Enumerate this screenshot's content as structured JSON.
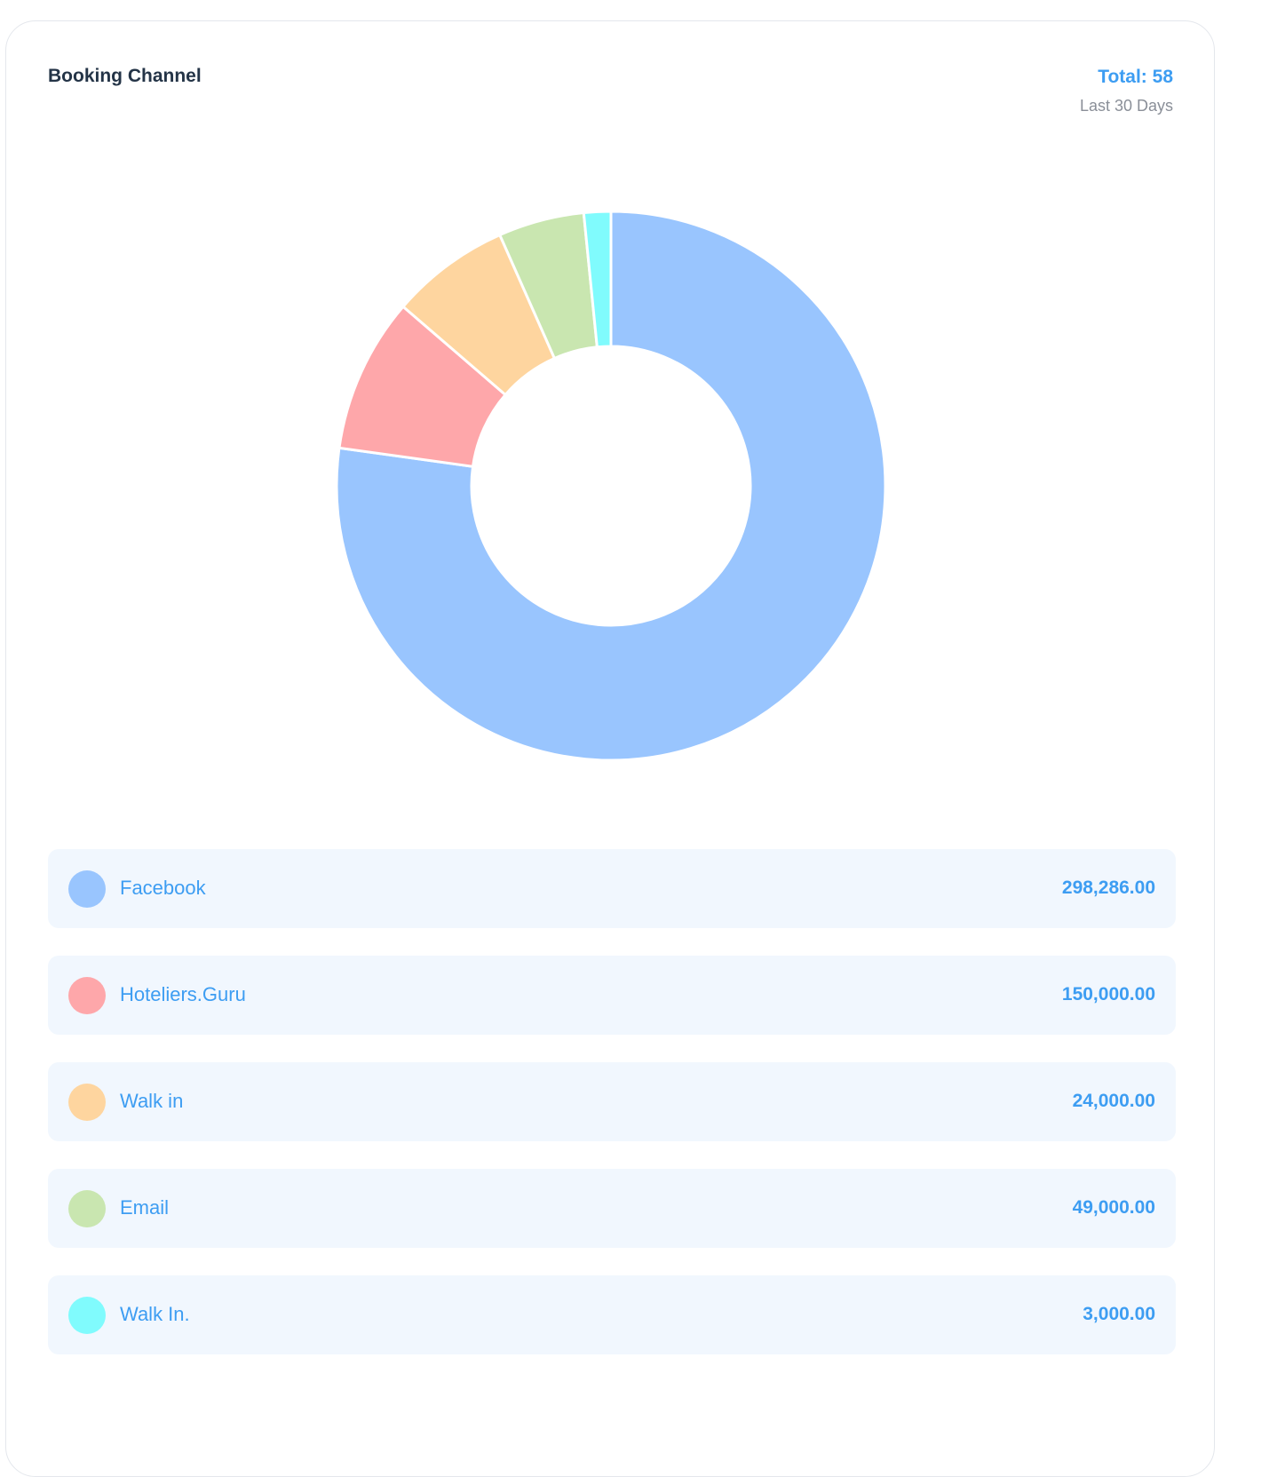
{
  "card": {
    "title": "Booking Channel",
    "total_line": "Total: 58",
    "period": "Last 30 Days"
  },
  "chart_data": {
    "type": "pie",
    "title": "Booking Channel",
    "donut": true,
    "categories": [
      "Facebook",
      "Hoteliers.Guru",
      "Walk in",
      "Email",
      "Walk In."
    ],
    "values": [
      298286,
      150000,
      24000,
      49000,
      3000
    ],
    "colors": [
      "#99c5fe",
      "#fea7aa",
      "#fed59f",
      "#c9e6b0",
      "#80fbfd"
    ],
    "display_values": [
      "298,286.00",
      "150,000.00",
      "24,000.00",
      "49,000.00",
      "3,000.00"
    ],
    "chart_shares": [
      0.779,
      0.092,
      0.071,
      0.051,
      0.016
    ]
  }
}
